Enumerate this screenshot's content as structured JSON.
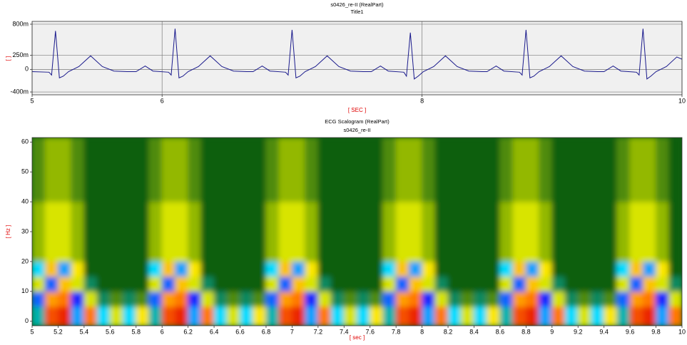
{
  "chart_data": [
    {
      "type": "line",
      "title": "s0426_re-II (RealPart)",
      "subtitle": "Title1",
      "xlabel": "[ SEC ]",
      "ylabel": "[ ]",
      "color": "#1a1a8c",
      "xlim": [
        5,
        10
      ],
      "xticks": [
        5,
        6,
        8,
        10
      ],
      "ylim": [
        -0.45,
        0.85
      ],
      "yticks": [
        {
          "value": 0.8,
          "label": "800m"
        },
        {
          "value": 0.25,
          "label": "250m"
        },
        0,
        {
          "value": -0.4,
          "label": "-400m"
        }
      ],
      "grid": true,
      "x": [
        5.0,
        5.13,
        5.15,
        5.18,
        5.21,
        5.24,
        5.28,
        5.36,
        5.45,
        5.54,
        5.63,
        5.73,
        5.8,
        5.87,
        5.93,
        6.05,
        6.07,
        6.1,
        6.13,
        6.16,
        6.2,
        6.28,
        6.37,
        6.46,
        6.55,
        6.65,
        6.7,
        6.77,
        6.83,
        6.95,
        6.97,
        7.0,
        7.03,
        7.06,
        7.1,
        7.18,
        7.27,
        7.36,
        7.45,
        7.55,
        7.61,
        7.68,
        7.74,
        7.86,
        7.88,
        7.91,
        7.94,
        7.97,
        8.01,
        8.09,
        8.18,
        8.27,
        8.36,
        8.46,
        8.5,
        8.57,
        8.63,
        8.75,
        8.77,
        8.8,
        8.83,
        8.86,
        8.9,
        8.98,
        9.07,
        9.16,
        9.25,
        9.35,
        9.4,
        9.47,
        9.53,
        9.65,
        9.67,
        9.7,
        9.73,
        9.76,
        9.8,
        9.88,
        9.96,
        10.0
      ],
      "values": [
        -0.04,
        -0.05,
        -0.1,
        0.68,
        -0.15,
        -0.12,
        -0.04,
        0.05,
        0.24,
        0.05,
        -0.03,
        -0.04,
        -0.04,
        0.06,
        -0.03,
        -0.05,
        -0.1,
        0.72,
        -0.15,
        -0.12,
        -0.04,
        0.05,
        0.24,
        0.05,
        -0.03,
        -0.04,
        -0.04,
        0.06,
        -0.03,
        -0.05,
        -0.1,
        0.7,
        -0.15,
        -0.12,
        -0.04,
        0.05,
        0.24,
        0.05,
        -0.03,
        -0.04,
        -0.04,
        0.06,
        -0.03,
        -0.05,
        -0.12,
        0.65,
        -0.17,
        -0.12,
        -0.04,
        0.05,
        0.24,
        0.05,
        -0.03,
        -0.04,
        -0.04,
        0.06,
        -0.03,
        -0.05,
        -0.1,
        0.7,
        -0.15,
        -0.12,
        -0.04,
        0.05,
        0.24,
        0.05,
        -0.03,
        -0.04,
        -0.04,
        0.06,
        -0.03,
        -0.05,
        -0.1,
        0.72,
        -0.17,
        -0.12,
        -0.04,
        0.05,
        0.22,
        0.18
      ]
    },
    {
      "type": "heatmap",
      "title": "ECG Scalogram (RealPart)",
      "subtitle": "s0426_re-II",
      "xlabel": "[ sec ]",
      "ylabel": "[ Hz ]",
      "xlim": [
        5,
        10
      ],
      "xticks": [
        5,
        5.2,
        5.4,
        5.6,
        5.8,
        6,
        6.2,
        6.4,
        6.6,
        6.8,
        7,
        7.2,
        7.4,
        7.6,
        7.8,
        8,
        8.2,
        8.4,
        8.6,
        8.8,
        9,
        9.2,
        9.4,
        9.6,
        9.8,
        10
      ],
      "ylim": [
        -1.5,
        61.5
      ],
      "yticks": [
        0,
        10,
        20,
        30,
        40,
        50,
        60
      ],
      "xbins": [
        5.0,
        5.1,
        5.2,
        5.3,
        5.4,
        5.5,
        5.6,
        5.7,
        5.8,
        5.9,
        6.0,
        6.1,
        6.2,
        6.3,
        6.4,
        6.5,
        6.6,
        6.7,
        6.8,
        6.9,
        7.0,
        7.1,
        7.2,
        7.3,
        7.4,
        7.5,
        7.6,
        7.7,
        7.8,
        7.9,
        8.0,
        8.1,
        8.2,
        8.3,
        8.4,
        8.5,
        8.6,
        8.7,
        8.8,
        8.9,
        9.0,
        9.1,
        9.2,
        9.3,
        9.4,
        9.5,
        9.6,
        9.7,
        9.8,
        9.9,
        10.0
      ],
      "ybins": [
        -1.5,
        5,
        10,
        15,
        20,
        40,
        61.5
      ],
      "z": [
        [
          -0.2,
          0.8,
          0.9,
          -0.4,
          0.7,
          -0.3,
          0.3,
          -0.3,
          0.4,
          -0.2,
          0.8,
          0.9,
          -0.4,
          0.7,
          -0.3,
          0.3,
          -0.3,
          0.4,
          -0.2,
          0.8,
          0.9,
          -0.4,
          0.7,
          -0.3,
          0.3,
          -0.3,
          0.4,
          -0.2,
          0.8,
          0.9,
          -0.4,
          0.7,
          -0.3,
          0.3,
          -0.3,
          0.4,
          -0.2,
          0.8,
          0.9,
          -0.4,
          0.7,
          -0.3,
          0.3,
          -0.3,
          0.4,
          -0.2,
          0.8,
          0.9,
          -0.4,
          0.7
        ],
        [
          -0.5,
          0.6,
          0.7,
          -0.6,
          0.3,
          -0.1,
          0.1,
          -0.1,
          0.1,
          -0.5,
          0.6,
          0.7,
          -0.6,
          0.3,
          -0.1,
          0.1,
          -0.1,
          0.1,
          -0.5,
          0.6,
          0.7,
          -0.6,
          0.3,
          -0.1,
          0.1,
          -0.1,
          0.1,
          -0.5,
          0.6,
          0.7,
          -0.6,
          0.3,
          -0.1,
          0.1,
          -0.1,
          0.1,
          -0.5,
          0.6,
          0.7,
          -0.6,
          0.3,
          -0.1,
          0.1,
          -0.1,
          0.1,
          -0.5,
          0.6,
          0.7,
          -0.6,
          0.3
        ],
        [
          0.3,
          -0.5,
          0.5,
          0.3,
          -0.1,
          0,
          0,
          0,
          0,
          0.3,
          -0.5,
          0.5,
          0.3,
          -0.1,
          0,
          0,
          0,
          0,
          0.3,
          -0.5,
          0.5,
          0.3,
          -0.1,
          0,
          0,
          0,
          0,
          0.3,
          -0.5,
          0.5,
          0.3,
          -0.1,
          0,
          0,
          0,
          0,
          0.3,
          -0.5,
          0.5,
          0.3,
          -0.1,
          0,
          0,
          0,
          0,
          0.3,
          -0.5,
          0.5,
          0.3,
          -0.1
        ],
        [
          -0.3,
          0.5,
          -0.4,
          0.4,
          0,
          0,
          0,
          0,
          0,
          -0.3,
          0.5,
          -0.4,
          0.4,
          0,
          0,
          0,
          0,
          0,
          -0.3,
          0.5,
          -0.4,
          0.4,
          0,
          0,
          0,
          0,
          0,
          -0.3,
          0.5,
          -0.4,
          0.4,
          0,
          0,
          0,
          0,
          0,
          -0.3,
          0.5,
          -0.4,
          0.4,
          0,
          0,
          0,
          0,
          0,
          -0.3,
          0.5,
          -0.4,
          0.4,
          0
        ],
        [
          0.2,
          0.3,
          0.3,
          0.2,
          0,
          0,
          0,
          0,
          0,
          0.2,
          0.3,
          0.3,
          0.2,
          0,
          0,
          0,
          0,
          0,
          0.2,
          0.3,
          0.3,
          0.2,
          0,
          0,
          0,
          0,
          0,
          0.2,
          0.3,
          0.3,
          0.2,
          0,
          0,
          0,
          0,
          0,
          0.2,
          0.3,
          0.3,
          0.2,
          0,
          0,
          0,
          0,
          0,
          0.2,
          0.3,
          0.3,
          0.2,
          0
        ],
        [
          0.1,
          0.2,
          0.2,
          0.1,
          0,
          0,
          0,
          0,
          0,
          0.1,
          0.2,
          0.2,
          0.1,
          0,
          0,
          0,
          0,
          0,
          0.1,
          0.2,
          0.2,
          0.1,
          0,
          0,
          0,
          0,
          0,
          0.1,
          0.2,
          0.2,
          0.1,
          0,
          0,
          0,
          0,
          0,
          0.1,
          0.2,
          0.2,
          0.1,
          0,
          0,
          0,
          0,
          0,
          0.1,
          0.2,
          0.2,
          0.1,
          0
        ]
      ]
    }
  ]
}
